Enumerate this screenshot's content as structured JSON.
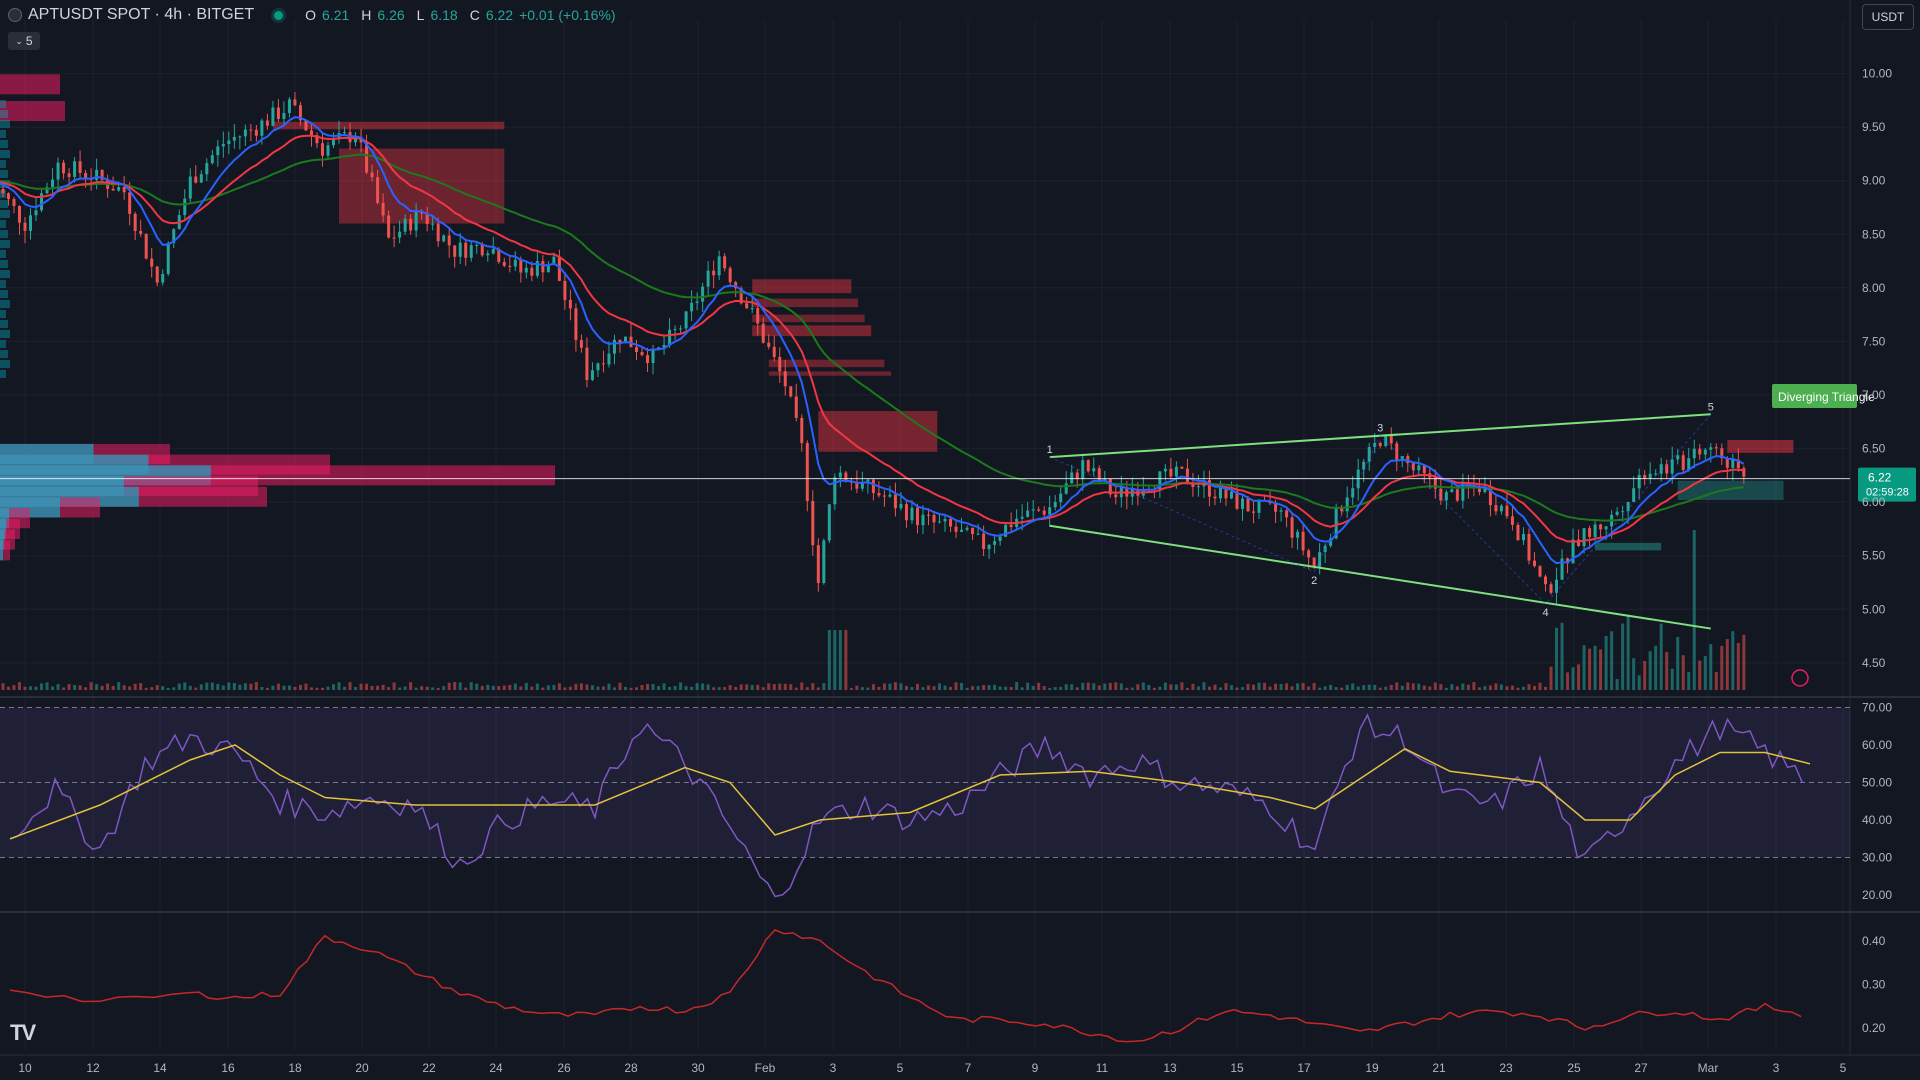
{
  "header": {
    "symbol": "APTUSDT SPOT · 4h · BITGET",
    "o_label": "O",
    "o": "6.21",
    "h_label": "H",
    "h": "6.26",
    "l_label": "L",
    "l": "6.18",
    "c_label": "C",
    "c": "6.22",
    "change": "+0.01 (+0.16%)"
  },
  "indicator_collapse": {
    "icon": "chevron-down-icon",
    "count": "5"
  },
  "currency_button": "USDT",
  "logo": "TV",
  "colors": {
    "up": "#26a69a",
    "down": "#ef5350",
    "ema_fast": "#2962ff",
    "ema_mid": "#f23645",
    "ema_slow": "#1b7a1b",
    "pattern": "#7ee07e",
    "rsi": "#7e57c2",
    "rsi_ma": "#e2c23c",
    "lower": "#c62828"
  },
  "chart_data": [
    {
      "type": "candlestick",
      "price_ticks": [
        "10.00",
        "9.50",
        "9.00",
        "8.50",
        "8.00",
        "7.50",
        "7.00",
        "6.50",
        "6.00",
        "5.50",
        "5.00",
        "4.50"
      ],
      "ylim": [
        4.2,
        10.5
      ],
      "last_price": "6.22",
      "countdown": "02:59:28",
      "x_ticks": [
        "10",
        "12",
        "14",
        "16",
        "18",
        "20",
        "22",
        "24",
        "26",
        "28",
        "30",
        "Feb",
        "3",
        "5",
        "7",
        "9",
        "11",
        "13",
        "15",
        "17",
        "19",
        "21",
        "23",
        "25",
        "27",
        "Mar",
        "3",
        "5"
      ],
      "pattern": {
        "label": "Diverging Triangle",
        "points": [
          {
            "name": "1",
            "x": "Feb 10",
            "y": 6.42
          },
          {
            "name": "2",
            "x": "Feb 18",
            "y": 5.35
          },
          {
            "name": "3",
            "x": "Feb 20",
            "y": 6.62
          },
          {
            "name": "4",
            "x": "Feb 25",
            "y": 5.05
          },
          {
            "name": "5",
            "x": "Mar 2",
            "y": 6.82
          }
        ]
      },
      "path": [
        [
          "Jan 9",
          9.0
        ],
        [
          "Jan 10",
          8.6
        ],
        [
          "Jan 11",
          9.15
        ],
        [
          "Jan 12",
          9.05
        ],
        [
          "Jan 13",
          8.9
        ],
        [
          "Jan 14",
          8.05
        ],
        [
          "Jan 15",
          9.0
        ],
        [
          "Jan 16",
          9.35
        ],
        [
          "Jan 17",
          9.5
        ],
        [
          "Jan 18",
          9.7
        ],
        [
          "Jan 19",
          9.3
        ],
        [
          "Jan 20",
          9.45
        ],
        [
          "Jan 21",
          8.45
        ],
        [
          "Jan 22",
          8.7
        ],
        [
          "Jan 23",
          8.35
        ],
        [
          "Jan 24",
          8.4
        ],
        [
          "Jan 25",
          8.15
        ],
        [
          "Jan 26",
          8.25
        ],
        [
          "Jan 27",
          7.2
        ],
        [
          "Jan 28",
          7.55
        ],
        [
          "Jan 29",
          7.35
        ],
        [
          "Jan 30",
          7.7
        ],
        [
          "Jan 31",
          8.3
        ],
        [
          "Feb 1",
          7.75
        ],
        [
          "Feb 2",
          7.1
        ],
        [
          "Feb 2.5",
          6.5
        ],
        [
          "Feb 3",
          5.25
        ],
        [
          "Feb 3.5",
          6.3
        ],
        [
          "Feb 4",
          6.2
        ],
        [
          "Feb 5",
          6.05
        ],
        [
          "Feb 6",
          5.85
        ],
        [
          "Feb 7",
          5.75
        ],
        [
          "Feb 8",
          5.6
        ],
        [
          "Feb 9",
          5.85
        ],
        [
          "Feb 10",
          5.95
        ],
        [
          "Feb 11",
          6.35
        ],
        [
          "Feb 12",
          6.05
        ],
        [
          "Feb 13",
          6.2
        ],
        [
          "Feb 14",
          6.25
        ],
        [
          "Feb 15",
          6.1
        ],
        [
          "Feb 16",
          5.95
        ],
        [
          "Feb 17",
          5.9
        ],
        [
          "Feb 18",
          5.4
        ],
        [
          "Feb 19",
          6.1
        ],
        [
          "Feb 20",
          6.6
        ],
        [
          "Feb 21",
          6.3
        ],
        [
          "Feb 22",
          6.05
        ],
        [
          "Feb 23",
          6.15
        ],
        [
          "Feb 24",
          5.85
        ],
        [
          "Feb 25",
          5.15
        ],
        [
          "Feb 26",
          5.65
        ],
        [
          "Feb 27",
          5.85
        ],
        [
          "Feb 28",
          6.3
        ],
        [
          "Mar 1",
          6.35
        ],
        [
          "Mar 2",
          6.5
        ],
        [
          "Mar 3",
          6.22
        ]
      ],
      "ema_offsets": {
        "fast": 0.05,
        "mid": 0.1
      }
    },
    {
      "type": "line",
      "indicator": "RSI",
      "ticks": [
        "70.00",
        "60.00",
        "50.00",
        "40.00",
        "30.00",
        "20.00"
      ],
      "ylim": [
        16,
        72
      ],
      "bands": [
        30,
        70
      ],
      "midline": 50,
      "rsi": [
        [
          0,
          36
        ],
        [
          3,
          48
        ],
        [
          6,
          32
        ],
        [
          9,
          55
        ],
        [
          12,
          62
        ],
        [
          15,
          58
        ],
        [
          18,
          45
        ],
        [
          21,
          42
        ],
        [
          24,
          46
        ],
        [
          27,
          44
        ],
        [
          30,
          28
        ],
        [
          33,
          40
        ],
        [
          36,
          45
        ],
        [
          39,
          43
        ],
        [
          42,
          66
        ],
        [
          45,
          55
        ],
        [
          48,
          38
        ],
        [
          51,
          18
        ],
        [
          54,
          40
        ],
        [
          57,
          44
        ],
        [
          60,
          40
        ],
        [
          63,
          43
        ],
        [
          66,
          52
        ],
        [
          69,
          60
        ],
        [
          72,
          52
        ],
        [
          75,
          56
        ],
        [
          78,
          50
        ],
        [
          81,
          48
        ],
        [
          84,
          44
        ],
        [
          87,
          32
        ],
        [
          90,
          65
        ],
        [
          93,
          62
        ],
        [
          96,
          46
        ],
        [
          99,
          44
        ],
        [
          102,
          54
        ],
        [
          105,
          28
        ],
        [
          108,
          42
        ],
        [
          111,
          55
        ],
        [
          114,
          65
        ],
        [
          117,
          58
        ],
        [
          120,
          50
        ]
      ],
      "ma": [
        [
          0,
          35
        ],
        [
          6,
          44
        ],
        [
          12,
          56
        ],
        [
          15,
          60
        ],
        [
          18,
          52
        ],
        [
          21,
          46
        ],
        [
          27,
          44
        ],
        [
          33,
          44
        ],
        [
          39,
          44
        ],
        [
          45,
          54
        ],
        [
          48,
          50
        ],
        [
          51,
          36
        ],
        [
          54,
          40
        ],
        [
          60,
          42
        ],
        [
          66,
          52
        ],
        [
          72,
          53
        ],
        [
          78,
          50
        ],
        [
          84,
          46
        ],
        [
          87,
          43
        ],
        [
          93,
          59
        ],
        [
          96,
          53
        ],
        [
          102,
          50
        ],
        [
          105,
          40
        ],
        [
          108,
          40
        ],
        [
          111,
          52
        ],
        [
          114,
          58
        ],
        [
          117,
          58
        ],
        [
          120,
          55
        ]
      ]
    },
    {
      "type": "line",
      "indicator": "lower-oscillator",
      "ticks": [
        "0.40",
        "0.30",
        "0.20"
      ],
      "ylim": [
        0.15,
        0.46
      ],
      "series": [
        [
          0,
          0.29
        ],
        [
          6,
          0.26
        ],
        [
          12,
          0.28
        ],
        [
          15,
          0.27
        ],
        [
          18,
          0.28
        ],
        [
          21,
          0.41
        ],
        [
          24,
          0.38
        ],
        [
          27,
          0.33
        ],
        [
          30,
          0.28
        ],
        [
          33,
          0.25
        ],
        [
          36,
          0.23
        ],
        [
          39,
          0.23
        ],
        [
          42,
          0.25
        ],
        [
          45,
          0.24
        ],
        [
          48,
          0.28
        ],
        [
          51,
          0.43
        ],
        [
          54,
          0.4
        ],
        [
          57,
          0.33
        ],
        [
          60,
          0.27
        ],
        [
          63,
          0.22
        ],
        [
          66,
          0.22
        ],
        [
          69,
          0.21
        ],
        [
          72,
          0.19
        ],
        [
          75,
          0.17
        ],
        [
          78,
          0.2
        ],
        [
          81,
          0.24
        ],
        [
          84,
          0.23
        ],
        [
          87,
          0.21
        ],
        [
          90,
          0.19
        ],
        [
          93,
          0.21
        ],
        [
          96,
          0.23
        ],
        [
          99,
          0.24
        ],
        [
          102,
          0.23
        ],
        [
          105,
          0.2
        ],
        [
          108,
          0.23
        ],
        [
          111,
          0.24
        ],
        [
          114,
          0.22
        ],
        [
          117,
          0.25
        ],
        [
          120,
          0.23
        ]
      ]
    }
  ]
}
